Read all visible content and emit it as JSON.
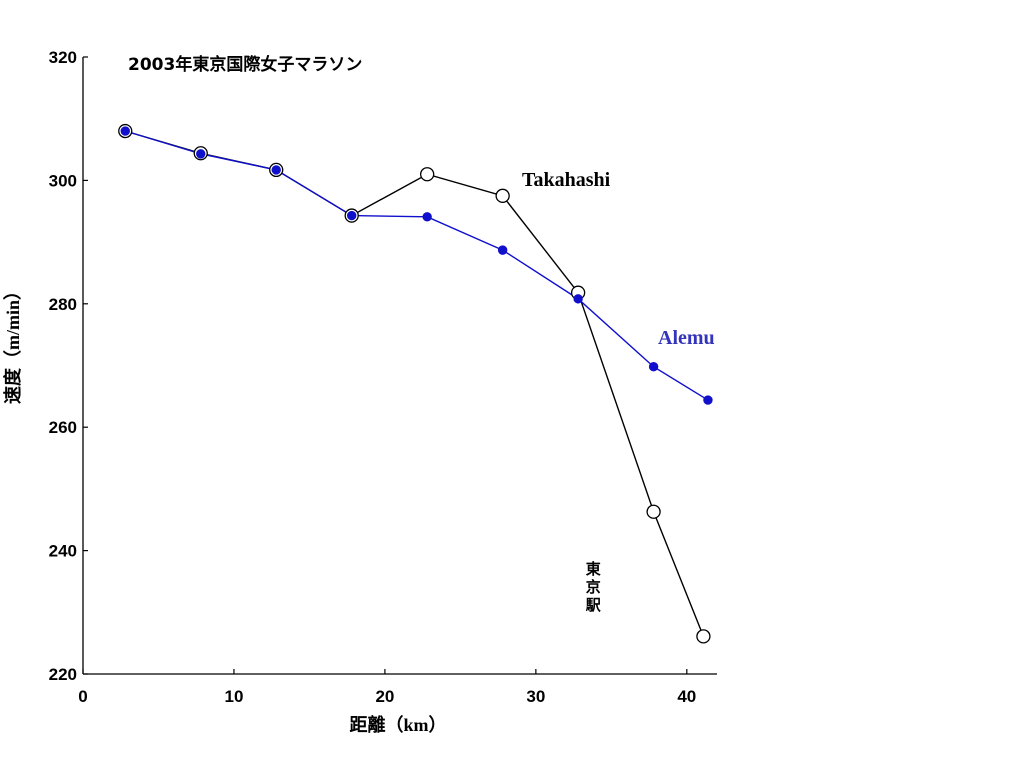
{
  "chart_data": {
    "type": "line",
    "title": "2003年東京国際女子マラソン",
    "xlabel": "距離（km）",
    "ylabel": "速度（m/min）",
    "xlim": [
      0,
      42
    ],
    "ylim": [
      220,
      320
    ],
    "xticks": [
      0,
      10,
      20,
      30,
      40
    ],
    "yticks": [
      220,
      240,
      260,
      280,
      300,
      320
    ],
    "grid": false,
    "series": [
      {
        "name": "Takahashi",
        "color": "#000000",
        "marker": "open-circle",
        "x": [
          2.8,
          7.8,
          12.8,
          17.8,
          22.8,
          27.8,
          32.8,
          37.8,
          41.1
        ],
        "y": [
          308,
          304.4,
          301.7,
          294.3,
          301,
          297.5,
          281.8,
          246.3,
          226.1
        ]
      },
      {
        "name": "Alemu",
        "color": "#1010cc",
        "marker": "filled-circle",
        "x": [
          2.8,
          7.8,
          12.8,
          17.8,
          22.8,
          27.8,
          32.8,
          37.8,
          41.4
        ],
        "y": [
          308,
          304.3,
          301.7,
          294.3,
          294.1,
          288.7,
          280.8,
          269.8,
          264.4
        ]
      }
    ],
    "annotations": [
      {
        "text": "東京駅",
        "x": 33.8,
        "y": 232,
        "orientation": "vertical"
      }
    ]
  }
}
